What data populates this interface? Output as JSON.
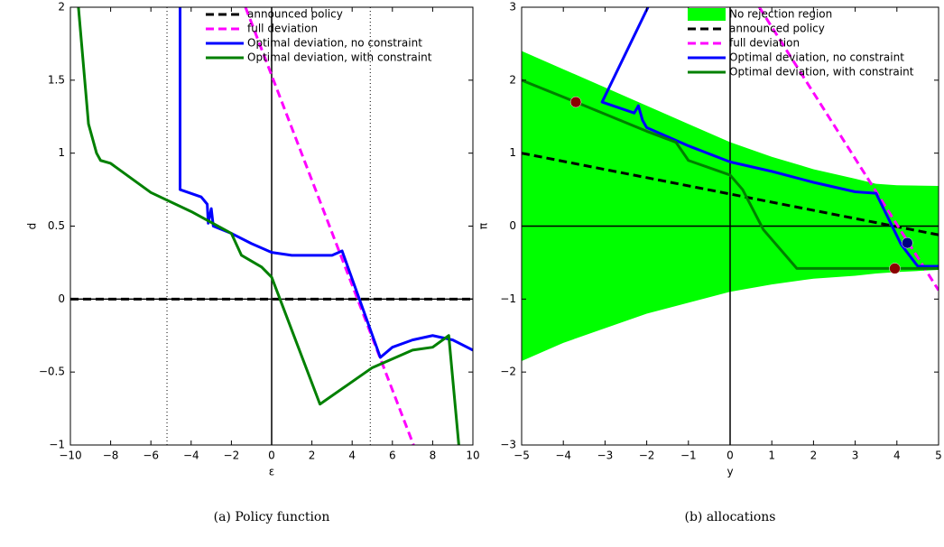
{
  "chart_data": [
    {
      "type": "line",
      "caption": "(a) Policy function",
      "xlabel": "ε",
      "ylabel": "d",
      "xlim": [
        -10,
        10
      ],
      "ylim": [
        -1,
        2
      ],
      "xticks": [
        {
          "value": -10,
          "label": "−10"
        },
        {
          "value": -8,
          "label": "−8"
        },
        {
          "value": -6,
          "label": "−6"
        },
        {
          "value": -4,
          "label": "−4"
        },
        {
          "value": -2,
          "label": "−2"
        },
        0,
        2,
        4,
        6,
        8,
        10
      ],
      "yticks": [
        {
          "value": -1,
          "label": "−1"
        },
        {
          "value": -0.5,
          "label": "−0.5"
        },
        0,
        0.5,
        1,
        1.5,
        2
      ],
      "vlines": [
        -5.2,
        4.9
      ],
      "series": [
        {
          "name": "announced policy",
          "color": "#000000",
          "style": "dashed",
          "x": [
            -10,
            10
          ],
          "values": [
            0,
            0
          ]
        },
        {
          "name": "full deviation",
          "color": "#ff00ff",
          "style": "dashed",
          "x": [
            -1.3,
            7.05
          ],
          "values": [
            2,
            -1
          ]
        },
        {
          "name": "Optimal deviation, no constraint",
          "color": "#0000ff",
          "style": "solid",
          "x": [
            -4.55,
            -4.55,
            -3.5,
            -3.2,
            -3.15,
            -3.0,
            -2.9,
            -2.0,
            -1.0,
            0,
            1,
            2,
            3,
            3.5,
            5.4,
            6,
            7,
            8,
            9,
            10
          ],
          "values": [
            2,
            0.75,
            0.7,
            0.65,
            0.52,
            0.62,
            0.5,
            0.45,
            0.38,
            0.32,
            0.3,
            0.3,
            0.3,
            0.33,
            -0.4,
            -0.33,
            -0.28,
            -0.25,
            -0.28,
            -0.35
          ]
        },
        {
          "name": "Optimal deviation, with constraint",
          "color": "#008000",
          "style": "solid",
          "x": [
            -9.6,
            -9.1,
            -8.7,
            -8.5,
            -8,
            -6,
            -4,
            -2,
            -1.5,
            -0.5,
            0,
            2.4,
            5,
            7,
            8,
            8.8,
            9.3
          ],
          "values": [
            2,
            1.2,
            1.0,
            0.95,
            0.93,
            0.73,
            0.6,
            0.45,
            0.3,
            0.22,
            0.15,
            -0.72,
            -0.47,
            -0.35,
            -0.33,
            -0.25,
            -1
          ]
        }
      ]
    },
    {
      "type": "line",
      "caption": "(b) allocations",
      "xlabel": "y",
      "ylabel": "π",
      "xlim": [
        -5,
        5
      ],
      "ylim": [
        -3,
        3
      ],
      "xticks": [
        {
          "value": -5,
          "label": "−5"
        },
        {
          "value": -4,
          "label": "−4"
        },
        {
          "value": -3,
          "label": "−3"
        },
        {
          "value": -2,
          "label": "−2"
        },
        {
          "value": -1,
          "label": "−1"
        },
        0,
        1,
        2,
        3,
        4,
        5
      ],
      "yticks": [
        {
          "value": -3,
          "label": "−3"
        },
        {
          "value": -2,
          "label": "−2"
        },
        {
          "value": -1,
          "label": "−1"
        },
        0,
        1,
        2,
        3
      ],
      "series": [
        {
          "name": "No rejection region",
          "color": "#00ff00",
          "style": "area",
          "x": [
            -5,
            -4,
            -3,
            -2,
            -1,
            0,
            1,
            2,
            3,
            3.5,
            4,
            5
          ],
          "values": [
            2.4,
            2.15,
            1.9,
            1.65,
            1.4,
            1.15,
            0.95,
            0.78,
            0.65,
            0.58,
            0.56,
            0.55
          ],
          "low": [
            -1.85,
            -1.6,
            -1.4,
            -1.2,
            -1.05,
            -0.9,
            -0.8,
            -0.72,
            -0.68,
            -0.65,
            -0.63,
            -0.6
          ]
        },
        {
          "name": "announced policy",
          "color": "#000000",
          "style": "dashed",
          "x": [
            -5,
            5
          ],
          "values": [
            1.0,
            -0.12
          ]
        },
        {
          "name": "full deviation",
          "color": "#ff00ff",
          "style": "dashed",
          "x": [
            0.7,
            5
          ],
          "values": [
            3,
            -0.88
          ]
        },
        {
          "name": "Optimal deviation, no constraint",
          "color": "#0000ff",
          "style": "solid",
          "x": [
            -1.97,
            -3.07,
            -2.3,
            -2.2,
            -2.1,
            -2.0,
            -1,
            0,
            1,
            2,
            3,
            3.5,
            4.1,
            4.5,
            5
          ],
          "values": [
            3,
            1.7,
            1.55,
            1.65,
            1.45,
            1.35,
            1.1,
            0.88,
            0.75,
            0.6,
            0.47,
            0.45,
            -0.25,
            -0.55,
            -0.55
          ]
        },
        {
          "name": "Optimal deviation, with constraint",
          "color": "#008000",
          "style": "solid",
          "x": [
            -5,
            -3.7,
            -2,
            -1.3,
            -1,
            0,
            0.3,
            0.8,
            1.6,
            5
          ],
          "values": [
            2.0,
            1.7,
            1.3,
            1.15,
            0.9,
            0.7,
            0.5,
            -0.05,
            -0.58,
            -0.58
          ]
        }
      ],
      "markers": {
        "x": [
          -3.7,
          3.95,
          4.25
        ],
        "y": [
          1.7,
          -0.58,
          -0.23
        ],
        "colors": [
          "#8b0000",
          "#8b0000",
          "#000080"
        ]
      }
    }
  ]
}
